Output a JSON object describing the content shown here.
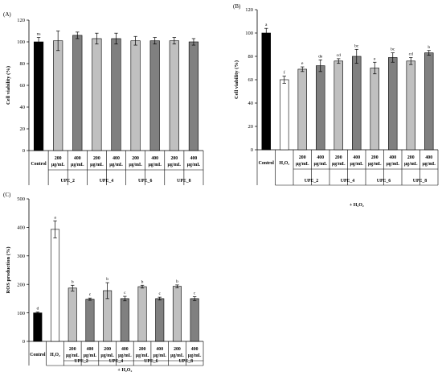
{
  "figure": {
    "panels": [
      "A",
      "B",
      "C"
    ]
  },
  "chart_data": [
    {
      "panel": "(A)",
      "type": "bar",
      "ylabel": "Cell viability (%)",
      "ylim": [
        0,
        120
      ],
      "yticks": [
        0,
        20,
        40,
        60,
        80,
        100,
        120
      ],
      "categories": [
        "Control",
        "200 µg/mL",
        "400 µg/mL",
        "200 µg/mL",
        "400 µg/mL",
        "200 µg/mL",
        "400 µg/mL",
        "200 µg/mL",
        "400 µg/mL"
      ],
      "groups": [
        "UPE_2",
        "UPE_4",
        "UPE_6",
        "UPE_8"
      ],
      "treatment_label": "",
      "values": [
        100,
        101,
        106,
        103,
        103,
        101,
        101,
        101,
        100
      ],
      "errors": [
        4,
        9,
        3,
        5,
        5,
        4,
        3,
        3,
        3
      ],
      "significance": [
        "ns",
        "",
        "",
        "",
        "",
        "",
        "",
        "",
        ""
      ],
      "bar_colors": [
        "#000000",
        "#c0c0c0",
        "#808080",
        "#c0c0c0",
        "#808080",
        "#c0c0c0",
        "#808080",
        "#c0c0c0",
        "#808080"
      ]
    },
    {
      "panel": "(B)",
      "type": "bar",
      "ylabel": "Cell viability (%)",
      "ylim": [
        0,
        120
      ],
      "yticks": [
        0,
        20,
        40,
        60,
        80,
        100,
        120
      ],
      "categories": [
        "Control",
        "H₂O₂",
        "200 µg/mL",
        "400 µg/mL",
        "200 µg/mL",
        "400 µg/mL",
        "200 µg/mL",
        "400 µg/mL",
        "200 µg/mL",
        "400 µg/mL"
      ],
      "groups": [
        "UPE_2",
        "UPE_4",
        "UPE_6",
        "UPE_8"
      ],
      "treatment_label": "+ H₂O₂",
      "values": [
        100,
        60,
        69,
        72,
        76,
        80,
        70,
        79,
        76,
        83
      ],
      "errors": [
        4,
        3,
        2,
        5,
        2,
        6,
        5,
        4,
        3,
        2
      ],
      "significance": [
        "a",
        "f",
        "e",
        "de",
        "cd",
        "bc",
        "e",
        "bc",
        "cd",
        "b"
      ],
      "bar_colors": [
        "#000000",
        "#ffffff",
        "#c0c0c0",
        "#808080",
        "#c0c0c0",
        "#808080",
        "#c0c0c0",
        "#808080",
        "#c0c0c0",
        "#808080"
      ]
    },
    {
      "panel": "(C)",
      "type": "bar",
      "ylabel": "ROS production (%)",
      "ylim": [
        0,
        500
      ],
      "yticks": [
        0,
        100,
        200,
        300,
        400,
        500
      ],
      "categories": [
        "Control",
        "H₂O₂",
        "200 µg/mL",
        "400 µg/mL",
        "200 µg/mL",
        "400 µg/mL",
        "200 µg/mL",
        "400 µg/mL",
        "200 µg/mL",
        "400 µg/mL"
      ],
      "groups": [
        "UPE_2",
        "UPE_4",
        "UPE_6",
        "UPE_8"
      ],
      "treatment_label": "+ H₂O₂",
      "values": [
        100,
        393,
        187,
        148,
        178,
        150,
        192,
        150,
        193,
        150
      ],
      "errors": [
        3,
        30,
        10,
        4,
        28,
        8,
        5,
        5,
        5,
        7
      ],
      "significance": [
        "d",
        "a",
        "b",
        "c",
        "b",
        "c",
        "b",
        "c",
        "b",
        "c"
      ],
      "bar_colors": [
        "#000000",
        "#ffffff",
        "#c0c0c0",
        "#808080",
        "#c0c0c0",
        "#808080",
        "#c0c0c0",
        "#808080",
        "#c0c0c0",
        "#808080"
      ]
    }
  ]
}
